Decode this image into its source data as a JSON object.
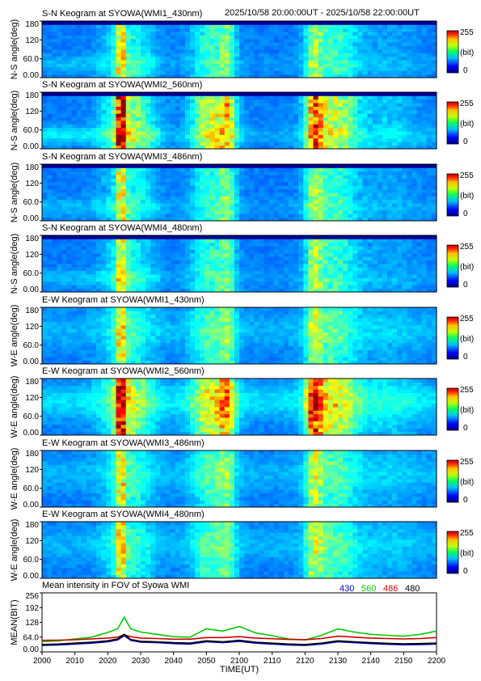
{
  "header": {
    "time_range": "2025/10/58 20:00:00UT - 2025/10/58 22:00:00UT"
  },
  "colorbar": {
    "max_label": "255",
    "unit_label": "(bit)",
    "min_label": "0"
  },
  "chart_data": [
    {
      "type": "heatmap",
      "title": "S-N Keogram at SYOWA(WMI1_430nm)",
      "ylabel": "N-S angle(deg)",
      "yticks": [
        "180",
        "120",
        "60.0",
        "0.00"
      ],
      "ylim": [
        0,
        180
      ],
      "brightness": "low"
    },
    {
      "type": "heatmap",
      "title": "S-N Keogram at SYOWA(WMI2_560nm)",
      "ylabel": "N-S angle(deg)",
      "yticks": [
        "180",
        "120",
        "60.0",
        "0.00"
      ],
      "ylim": [
        0,
        180
      ],
      "brightness": "high"
    },
    {
      "type": "heatmap",
      "title": "S-N Keogram at SYOWA(WMI3_486nm)",
      "ylabel": "N-S angle(deg)",
      "yticks": [
        "180",
        "120",
        "60.0",
        "0.00"
      ],
      "ylim": [
        0,
        180
      ],
      "brightness": "low"
    },
    {
      "type": "heatmap",
      "title": "S-N Keogram at SYOWA(WMI4_480nm)",
      "ylabel": "N-S angle(deg)",
      "yticks": [
        "180",
        "120",
        "60.0",
        "0.00"
      ],
      "ylim": [
        0,
        180
      ],
      "brightness": "low"
    },
    {
      "type": "heatmap",
      "title": "E-W Keogram at SYOWA(WMI1_430nm)",
      "ylabel": "W-E angle(deg)",
      "yticks": [
        "180",
        "120",
        "60.0",
        "0.00"
      ],
      "ylim": [
        0,
        180
      ],
      "brightness": "low"
    },
    {
      "type": "heatmap",
      "title": "E-W Keogram at SYOWA(WMI2_560nm)",
      "ylabel": "W-E angle(deg)",
      "yticks": [
        "180",
        "120",
        "60.0",
        "0.00"
      ],
      "ylim": [
        0,
        180
      ],
      "brightness": "high"
    },
    {
      "type": "heatmap",
      "title": "E-W Keogram at SYOWA(WMI3_486nm)",
      "ylabel": "W-E angle(deg)",
      "yticks": [
        "180",
        "120",
        "60.0",
        "0.00"
      ],
      "ylim": [
        0,
        180
      ],
      "brightness": "low"
    },
    {
      "type": "heatmap",
      "title": "E-W Keogram at SYOWA(WMI4_480nm)",
      "ylabel": "W-E angle(deg)",
      "yticks": [
        "180",
        "120",
        "60.0",
        "0.00"
      ],
      "ylim": [
        0,
        180
      ],
      "brightness": "low"
    },
    {
      "type": "line",
      "title": "Mean intensity in FOV of Syowa WMI",
      "xlabel": "TIME(UT)",
      "ylabel": "MEAN(BIT)",
      "ylim": [
        0,
        256
      ],
      "yticks": [
        "256",
        "192",
        "128",
        "64.0",
        "0.00"
      ],
      "xticks": [
        "2000",
        "2010",
        "2020",
        "2030",
        "2040",
        "2050",
        "2100",
        "2110",
        "2120",
        "2130",
        "2140",
        "2150",
        "2200"
      ],
      "x": [
        0,
        5,
        10,
        15,
        20,
        23,
        25,
        27,
        30,
        35,
        40,
        45,
        50,
        55,
        60,
        65,
        70,
        75,
        80,
        85,
        90,
        95,
        100,
        105,
        110,
        115,
        120
      ],
      "series": [
        {
          "name": "430",
          "color": "#0000cc",
          "values": [
            28,
            30,
            34,
            38,
            44,
            52,
            70,
            50,
            42,
            40,
            36,
            34,
            44,
            40,
            46,
            38,
            34,
            30,
            28,
            34,
            44,
            40,
            36,
            33,
            31,
            32,
            34
          ]
        },
        {
          "name": "560",
          "color": "#00cc00",
          "values": [
            45,
            48,
            56,
            64,
            84,
            100,
            150,
            100,
            86,
            76,
            66,
            64,
            100,
            90,
            110,
            82,
            70,
            56,
            52,
            72,
            100,
            86,
            76,
            72,
            68,
            76,
            90
          ]
        },
        {
          "name": "486",
          "color": "#cc0000",
          "values": [
            50,
            51,
            53,
            56,
            60,
            64,
            74,
            66,
            60,
            58,
            55,
            55,
            62,
            62,
            66,
            60,
            57,
            54,
            53,
            58,
            68,
            64,
            60,
            58,
            56,
            58,
            62
          ]
        },
        {
          "name": "480",
          "color": "#000000",
          "values": [
            32,
            34,
            38,
            42,
            48,
            56,
            76,
            54,
            46,
            44,
            40,
            38,
            48,
            44,
            50,
            42,
            38,
            34,
            32,
            38,
            48,
            44,
            40,
            37,
            35,
            36,
            38
          ]
        }
      ]
    }
  ]
}
